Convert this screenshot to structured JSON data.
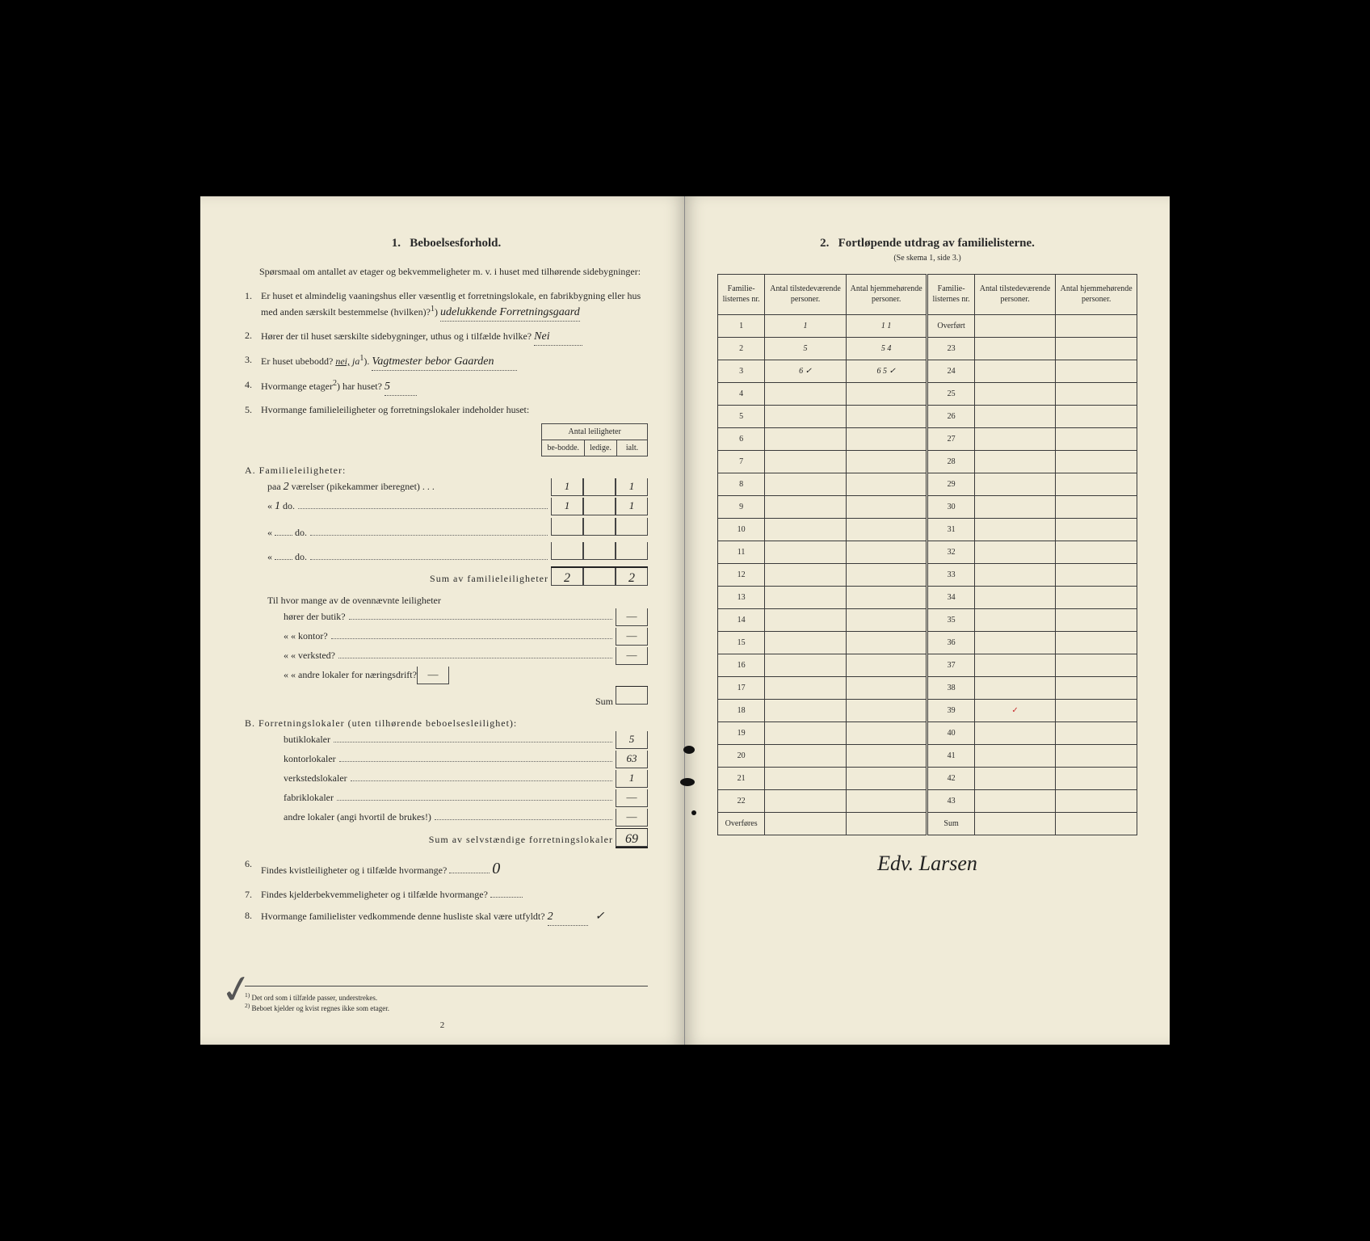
{
  "left": {
    "section_num": "1.",
    "section_title": "Beboelsesforhold.",
    "intro": "Spørsmaal om antallet av etager og bekvemmeligheter m. v. i huset med tilhørende sidebygninger:",
    "q1": {
      "num": "1.",
      "text_a": "Er huset et almindelig vaaningshus eller væsentlig et forretningslokale, en fabrikbygning eller hus med anden særskilt bestemmelse (hvilken)?",
      "sup": "1",
      "answer": "udelukkende Forretningsgaard"
    },
    "q2": {
      "num": "2.",
      "text": "Hører der til huset særskilte sidebygninger, uthus og i tilfælde hvilke?",
      "answer": "Nei"
    },
    "q3": {
      "num": "3.",
      "text": "Er huset ubebodd?",
      "nei": "nei,",
      "ja": "ja",
      "sup": "1",
      "answer": "Vagtmester bebor Gaarden"
    },
    "q4": {
      "num": "4.",
      "text": "Hvormange etager",
      "sup": "2",
      "text2": ") har huset?",
      "answer": "5"
    },
    "q5": {
      "num": "5.",
      "text": "Hvormange familieleiligheter og forretningslokaler indeholder huset:"
    },
    "antal_header": "Antal leiligheter",
    "col_bebodde": "be-bodde.",
    "col_ledige": "ledige.",
    "col_ialt": "ialt.",
    "secA": {
      "title": "A. Familieleiligheter:",
      "row1": {
        "label_a": "paa",
        "val": "2",
        "label_b": "værelser (pikekammer iberegnet) . . .",
        "c1": "1",
        "c2": "",
        "c3": "1"
      },
      "row2": {
        "label_a": "«",
        "val": "1",
        "label_b": "do.",
        "c1": "1",
        "c2": "",
        "c3": "1"
      },
      "row3": {
        "label_a": "«",
        "val": "",
        "label_b": "do.",
        "c1": "",
        "c2": "",
        "c3": ""
      },
      "row4": {
        "label_a": "«",
        "val": "",
        "label_b": "do.",
        "c1": "",
        "c2": "",
        "c3": ""
      },
      "sum": {
        "label": "Sum av familieleiligheter",
        "c1": "2",
        "c2": "",
        "c3": "2"
      }
    },
    "secA2": {
      "intro": "Til hvor mange av de ovennævnte leiligheter",
      "r1": "hører der butik?",
      "r2": "«      «   kontor?",
      "r3": "«      «   verksted?",
      "r4": "«      «   andre lokaler for næringsdrift?",
      "sum": "Sum"
    },
    "secB": {
      "title": "B. Forretningslokaler (uten tilhørende beboelsesleilighet):",
      "r1": {
        "label": "butiklokaler",
        "val": "5"
      },
      "r2": {
        "label": "kontorlokaler",
        "val": "63"
      },
      "r3": {
        "label": "verkstedslokaler",
        "val": "1"
      },
      "r4": {
        "label": "fabriklokaler",
        "val": ""
      },
      "r5": {
        "label": "andre lokaler (angi hvortil de brukes!)",
        "val": ""
      },
      "sum": {
        "label": "Sum av selvstændige forretningslokaler",
        "val": "69"
      }
    },
    "q6": {
      "num": "6.",
      "text": "Findes kvistleiligheter og i tilfælde hvormange?",
      "answer": "0"
    },
    "q7": {
      "num": "7.",
      "text": "Findes kjelderbekvemmeligheter og i tilfælde hvormange?",
      "answer": ""
    },
    "q8": {
      "num": "8.",
      "text": "Hvormange familielister vedkommende denne husliste skal være utfyldt?",
      "answer": "2",
      "check": "✓"
    },
    "fn1": {
      "num": "1)",
      "text": "Det ord som i tilfælde passer, understrekes."
    },
    "fn2": {
      "num": "2)",
      "text": "Beboet kjelder og kvist regnes ikke som etager."
    },
    "page_num": "2"
  },
  "right": {
    "section_num": "2.",
    "section_title": "Fortløpende utdrag av familielisterne.",
    "subtitle": "(Se skema 1, side 3.)",
    "headers": {
      "h1": "Familie-listernes nr.",
      "h2": "Antal tilstedeværende personer.",
      "h3": "Antal hjemmehørende personer.",
      "h4": "Familie-listernes nr.",
      "h5": "Antal tilstedeværende personer.",
      "h6": "Antal hjemmehørende personer."
    },
    "rows_left": [
      {
        "n": "1",
        "a": "1",
        "b": "1 1"
      },
      {
        "n": "2",
        "a": "5",
        "b": "5 4"
      },
      {
        "n": "3",
        "a": "6 ✓",
        "b": "6 5 ✓"
      },
      {
        "n": "4",
        "a": "",
        "b": ""
      },
      {
        "n": "5",
        "a": "",
        "b": ""
      },
      {
        "n": "6",
        "a": "",
        "b": ""
      },
      {
        "n": "7",
        "a": "",
        "b": ""
      },
      {
        "n": "8",
        "a": "",
        "b": ""
      },
      {
        "n": "9",
        "a": "",
        "b": ""
      },
      {
        "n": "10",
        "a": "",
        "b": ""
      },
      {
        "n": "11",
        "a": "",
        "b": ""
      },
      {
        "n": "12",
        "a": "",
        "b": ""
      },
      {
        "n": "13",
        "a": "",
        "b": ""
      },
      {
        "n": "14",
        "a": "",
        "b": ""
      },
      {
        "n": "15",
        "a": "",
        "b": ""
      },
      {
        "n": "16",
        "a": "",
        "b": ""
      },
      {
        "n": "17",
        "a": "",
        "b": ""
      },
      {
        "n": "18",
        "a": "",
        "b": ""
      },
      {
        "n": "19",
        "a": "",
        "b": ""
      },
      {
        "n": "20",
        "a": "",
        "b": ""
      },
      {
        "n": "21",
        "a": "",
        "b": ""
      },
      {
        "n": "22",
        "a": "",
        "b": ""
      }
    ],
    "rows_right": [
      {
        "n": "Overført",
        "a": "",
        "b": ""
      },
      {
        "n": "23",
        "a": "",
        "b": ""
      },
      {
        "n": "24",
        "a": "",
        "b": ""
      },
      {
        "n": "25",
        "a": "",
        "b": ""
      },
      {
        "n": "26",
        "a": "",
        "b": ""
      },
      {
        "n": "27",
        "a": "",
        "b": ""
      },
      {
        "n": "28",
        "a": "",
        "b": ""
      },
      {
        "n": "29",
        "a": "",
        "b": ""
      },
      {
        "n": "30",
        "a": "",
        "b": ""
      },
      {
        "n": "31",
        "a": "",
        "b": ""
      },
      {
        "n": "32",
        "a": "",
        "b": ""
      },
      {
        "n": "33",
        "a": "",
        "b": ""
      },
      {
        "n": "34",
        "a": "",
        "b": ""
      },
      {
        "n": "35",
        "a": "",
        "b": ""
      },
      {
        "n": "36",
        "a": "",
        "b": ""
      },
      {
        "n": "37",
        "a": "",
        "b": ""
      },
      {
        "n": "38",
        "a": "",
        "b": ""
      },
      {
        "n": "39",
        "a": "✓",
        "b": ""
      },
      {
        "n": "40",
        "a": "",
        "b": ""
      },
      {
        "n": "41",
        "a": "",
        "b": ""
      },
      {
        "n": "42",
        "a": "",
        "b": ""
      },
      {
        "n": "43",
        "a": "",
        "b": ""
      }
    ],
    "overfores": "Overføres",
    "sum": "Sum",
    "signature": "Edv. Larsen"
  },
  "colors": {
    "paper": "#f0ebd8",
    "ink": "#2a2a2a",
    "border": "#3a3a3a",
    "red": "#c83030",
    "bg": "#000000"
  }
}
